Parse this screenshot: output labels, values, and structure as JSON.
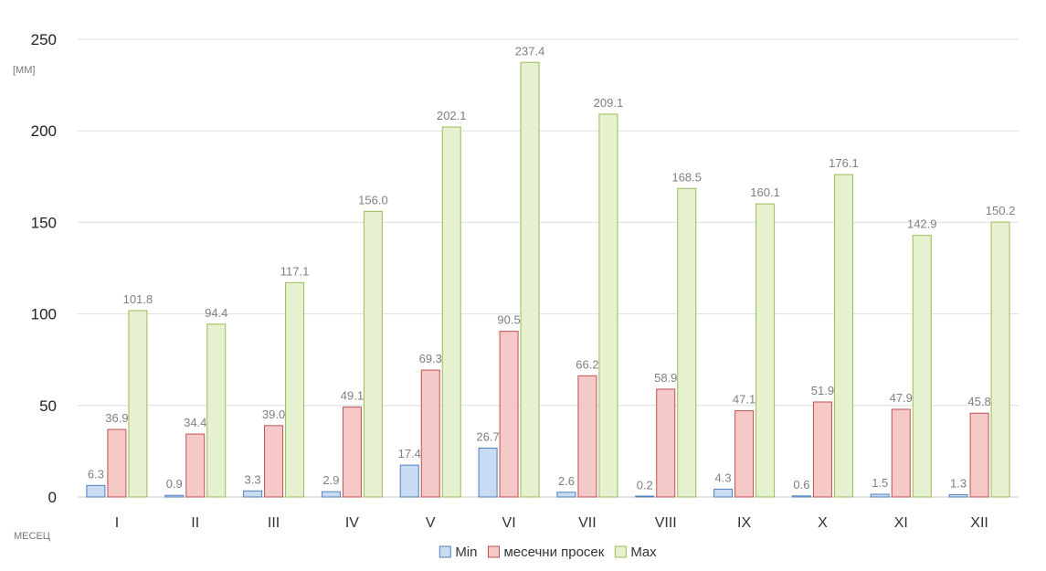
{
  "chart_data": {
    "type": "bar",
    "y_unit_label": "[MM]",
    "x_unit_label": "МЕСЕЦ",
    "categories": [
      "I",
      "II",
      "III",
      "IV",
      "V",
      "VI",
      "VII",
      "VIII",
      "IX",
      "X",
      "XI",
      "XII"
    ],
    "series": [
      {
        "name": "Min",
        "values": [
          6.3,
          0.9,
          3.3,
          2.9,
          17.4,
          26.7,
          2.6,
          0.2,
          4.3,
          0.6,
          1.5,
          1.3
        ],
        "fill": "#c9dbf3",
        "stroke": "#4f81bd"
      },
      {
        "name": "месечни просек",
        "values": [
          36.9,
          34.4,
          39.0,
          49.1,
          69.3,
          90.5,
          66.2,
          58.9,
          47.1,
          51.9,
          47.9,
          45.8
        ],
        "fill": "#f6c9c9",
        "stroke": "#c0504d"
      },
      {
        "name": "Max",
        "values": [
          101.8,
          94.4,
          117.1,
          156.0,
          202.1,
          237.4,
          209.1,
          168.5,
          160.1,
          176.1,
          142.9,
          150.2
        ],
        "fill": "#e6f1cf",
        "stroke": "#9bbb59"
      }
    ],
    "ylim": [
      0,
      250
    ],
    "y_ticks": [
      0,
      50,
      100,
      150,
      200,
      250
    ],
    "grid": true,
    "legend_position": "bottom",
    "data_labels": true,
    "label_decimals": 1
  }
}
